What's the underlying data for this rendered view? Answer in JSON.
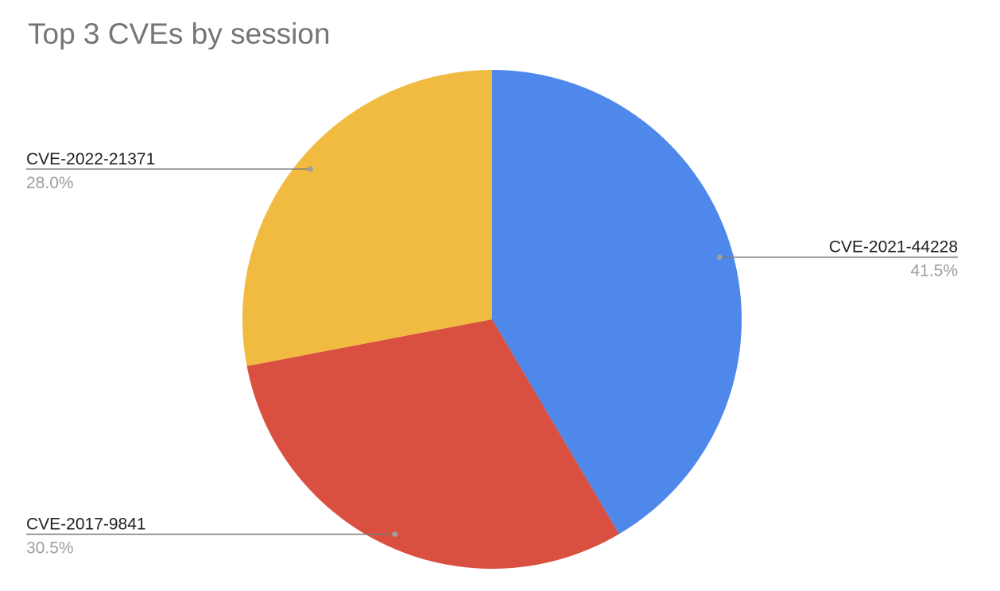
{
  "chart_data": {
    "type": "pie",
    "title": "Top 3 CVEs by session",
    "start_angle": "12 o'clock, clockwise",
    "legend": "callout labels",
    "slices": [
      {
        "label": "CVE-2021-44228",
        "value": 41.5,
        "percent_label": "41.5%",
        "color": "#4e88ea"
      },
      {
        "label": "CVE-2017-9841",
        "value": 30.5,
        "percent_label": "30.5%",
        "color": "#da5040"
      },
      {
        "label": "CVE-2022-21371",
        "value": 28.0,
        "percent_label": "28.0%",
        "color": "#f1bb42"
      }
    ]
  }
}
